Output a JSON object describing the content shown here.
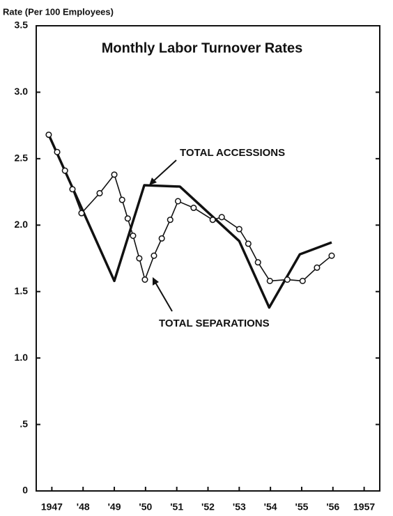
{
  "chart_data": {
    "type": "line",
    "title": "Monthly Labor Turnover Rates",
    "y_label": "Rate (Per 100 Employees)",
    "annotations": [
      "TOTAL ACCESSIONS",
      "TOTAL SEPARATIONS"
    ],
    "xlim": [
      1947,
      1958
    ],
    "xticks": [
      {
        "value": 1947.5,
        "label": "1947"
      },
      {
        "value": 1948.5,
        "label": "'48"
      },
      {
        "value": 1949.5,
        "label": "'49"
      },
      {
        "value": 1950.5,
        "label": "'50"
      },
      {
        "value": 1951.5,
        "label": "'51"
      },
      {
        "value": 1952.5,
        "label": "'52"
      },
      {
        "value": 1953.5,
        "label": "'53"
      },
      {
        "value": 1954.5,
        "label": "'54"
      },
      {
        "value": 1955.5,
        "label": "'55"
      },
      {
        "value": 1956.5,
        "label": "'56"
      },
      {
        "value": 1957.5,
        "label": "1957"
      }
    ],
    "ylim": [
      0,
      3.5
    ],
    "yticks": [
      0,
      {
        "value": 0.5,
        "label": ".5"
      },
      {
        "value": 1,
        "label": "1.0"
      },
      1.5,
      {
        "value": 2,
        "label": "2.0"
      },
      2.5,
      {
        "value": 3,
        "label": "3.0"
      },
      3.5
    ],
    "grid": false,
    "series": [
      {
        "name": "TOTAL ACCESSIONS",
        "color": "#111111",
        "marker": false,
        "x": [
          1947.4,
          1949.5,
          1950.46,
          1951.6,
          1953.5,
          1954.46,
          1955.44,
          1956.46
        ],
        "values": [
          2.68,
          1.58,
          2.3,
          2.29,
          1.88,
          1.38,
          1.78,
          1.87
        ]
      },
      {
        "name": "TOTAL SEPARATIONS",
        "color": "#111111",
        "marker": true,
        "x": [
          1947.4,
          1947.67,
          1947.92,
          1948.16,
          1948.45,
          1949.03,
          1949.5,
          1949.75,
          1949.93,
          1950.1,
          1950.3,
          1950.48,
          1950.77,
          1951.02,
          1951.29,
          1951.54,
          1952.04,
          1952.65,
          1952.94,
          1953.5,
          1953.79,
          1954.1,
          1954.48,
          1955.04,
          1955.53,
          1955.99,
          1956.46
        ],
        "values": [
          2.68,
          2.55,
          2.41,
          2.27,
          2.09,
          2.24,
          2.38,
          2.19,
          2.05,
          1.92,
          1.75,
          1.59,
          1.77,
          1.9,
          2.04,
          2.18,
          2.13,
          2.04,
          2.06,
          1.97,
          1.86,
          1.72,
          1.58,
          1.59,
          1.58,
          1.68,
          1.77
        ]
      }
    ]
  }
}
